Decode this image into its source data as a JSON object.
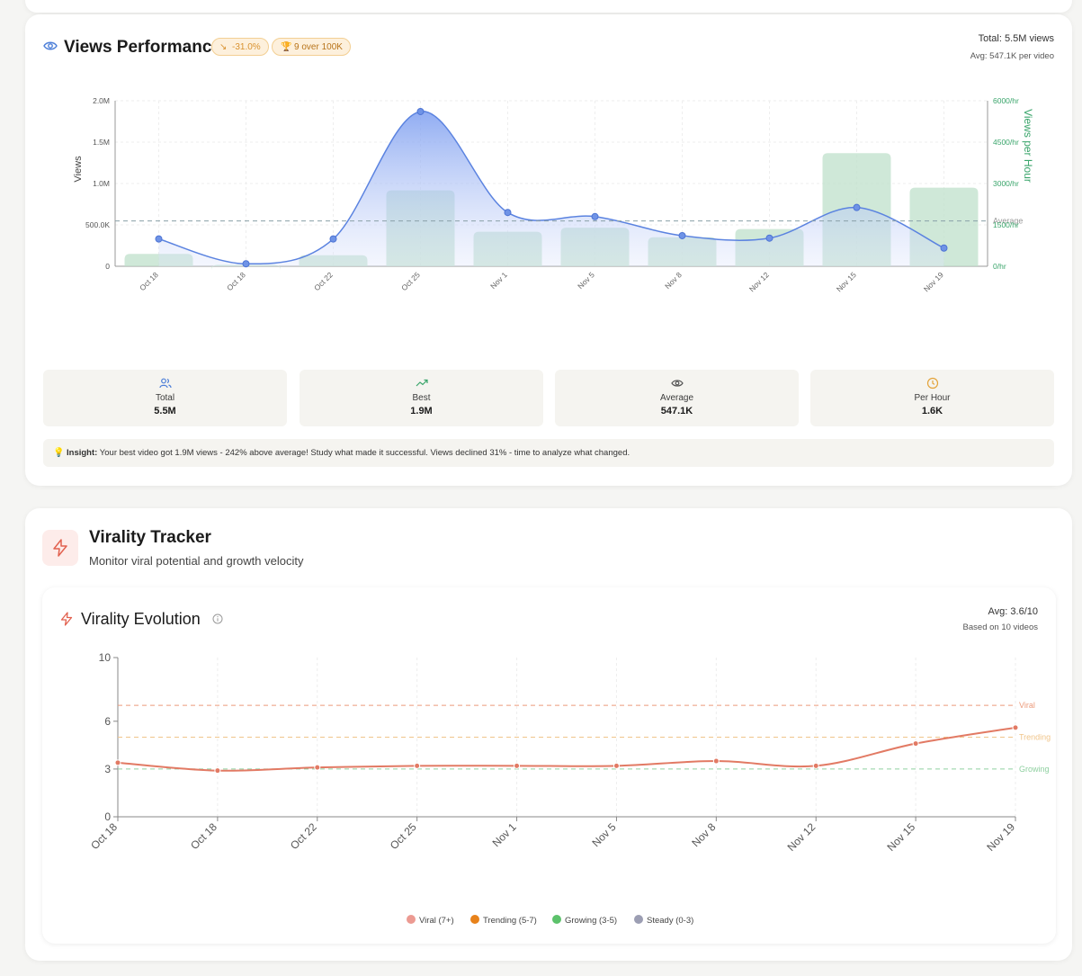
{
  "views_panel": {
    "title": "Views Performance",
    "badge_change": "-31.0%",
    "badge_over": "9 over 100K",
    "total_text": "Total: 5.5M views",
    "avg_text": "Avg: 547.1K per video",
    "stats": [
      {
        "label": "Total",
        "value": "5.5M",
        "icon": "users-icon",
        "color": "#4d7fd8"
      },
      {
        "label": "Best",
        "value": "1.9M",
        "icon": "trending-up-icon",
        "color": "#3aa56b"
      },
      {
        "label": "Average",
        "value": "547.1K",
        "icon": "eye-icon",
        "color": "#555555"
      },
      {
        "label": "Per Hour",
        "value": "1.6K",
        "icon": "clock-icon",
        "color": "#e3a33a"
      }
    ],
    "insight_label": "Insight:",
    "insight_text": "Your best video got 1.9M views - 242% above average! Study what made it successful. Views declined 31% - time to analyze what changed."
  },
  "virality_panel": {
    "title": "Virality Tracker",
    "subtitle": "Monitor viral potential and growth velocity",
    "chart_title": "Virality Evolution",
    "avg_text": "Avg: 3.6/10",
    "based_text": "Based on 10 videos",
    "legend": [
      {
        "label": "Viral (7+)",
        "color": "#ec9a92"
      },
      {
        "label": "Trending (5-7)",
        "color": "#e8821a"
      },
      {
        "label": "Growing (3-5)",
        "color": "#5cc26b"
      },
      {
        "label": "Steady (0-3)",
        "color": "#9c9eb3"
      }
    ]
  },
  "chart_data": [
    {
      "type": "line",
      "categories": [
        "Oct 18",
        "Oct 18",
        "Oct 22",
        "Oct 25",
        "Nov 1",
        "Nov 5",
        "Nov 8",
        "Nov 12",
        "Nov 15",
        "Nov 19"
      ],
      "series": [
        {
          "name": "Views",
          "type": "area",
          "axis": "left",
          "values": [
            330000,
            30000,
            330000,
            1870000,
            650000,
            600000,
            370000,
            340000,
            710000,
            220000
          ]
        },
        {
          "name": "Views per Hour",
          "type": "bar",
          "axis": "right",
          "values": [
            450,
            50,
            400,
            2750,
            1250,
            1400,
            1050,
            1350,
            4100,
            2850
          ]
        }
      ],
      "ylabel": "Views",
      "y2label": "Views per Hour",
      "ylim": [
        0,
        2000000
      ],
      "y2lim": [
        0,
        6000
      ],
      "yticks": [
        "0",
        "500.0K",
        "1.0M",
        "1.5M",
        "2.0M"
      ],
      "y2ticks": [
        "0/hr",
        "1500/hr",
        "3000/hr",
        "4500/hr",
        "6000/hr"
      ],
      "average_line": {
        "label": "Average",
        "value": 547100
      },
      "colors": {
        "line": "#5b83e0",
        "bar": "#bfe0cb"
      },
      "grid": true
    },
    {
      "type": "line",
      "categories": [
        "Oct 18",
        "Oct 18",
        "Oct 22",
        "Oct 25",
        "Nov 1",
        "Nov 5",
        "Nov 8",
        "Nov 12",
        "Nov 15",
        "Nov 19"
      ],
      "series": [
        {
          "name": "Virality",
          "values": [
            3.4,
            2.9,
            3.1,
            3.2,
            3.2,
            3.2,
            3.5,
            3.2,
            4.6,
            5.6
          ]
        }
      ],
      "ylim": [
        0,
        10
      ],
      "yticks": [
        "0",
        "3",
        "6",
        "10"
      ],
      "thresholds": [
        {
          "label": "Viral",
          "value": 7,
          "color": "#ec9a7a"
        },
        {
          "label": "Trending",
          "value": 5,
          "color": "#f0c58a"
        },
        {
          "label": "Growing",
          "value": 3,
          "color": "#8fd0a0"
        }
      ],
      "colors": {
        "line": "#e27a64"
      },
      "grid": true
    }
  ]
}
